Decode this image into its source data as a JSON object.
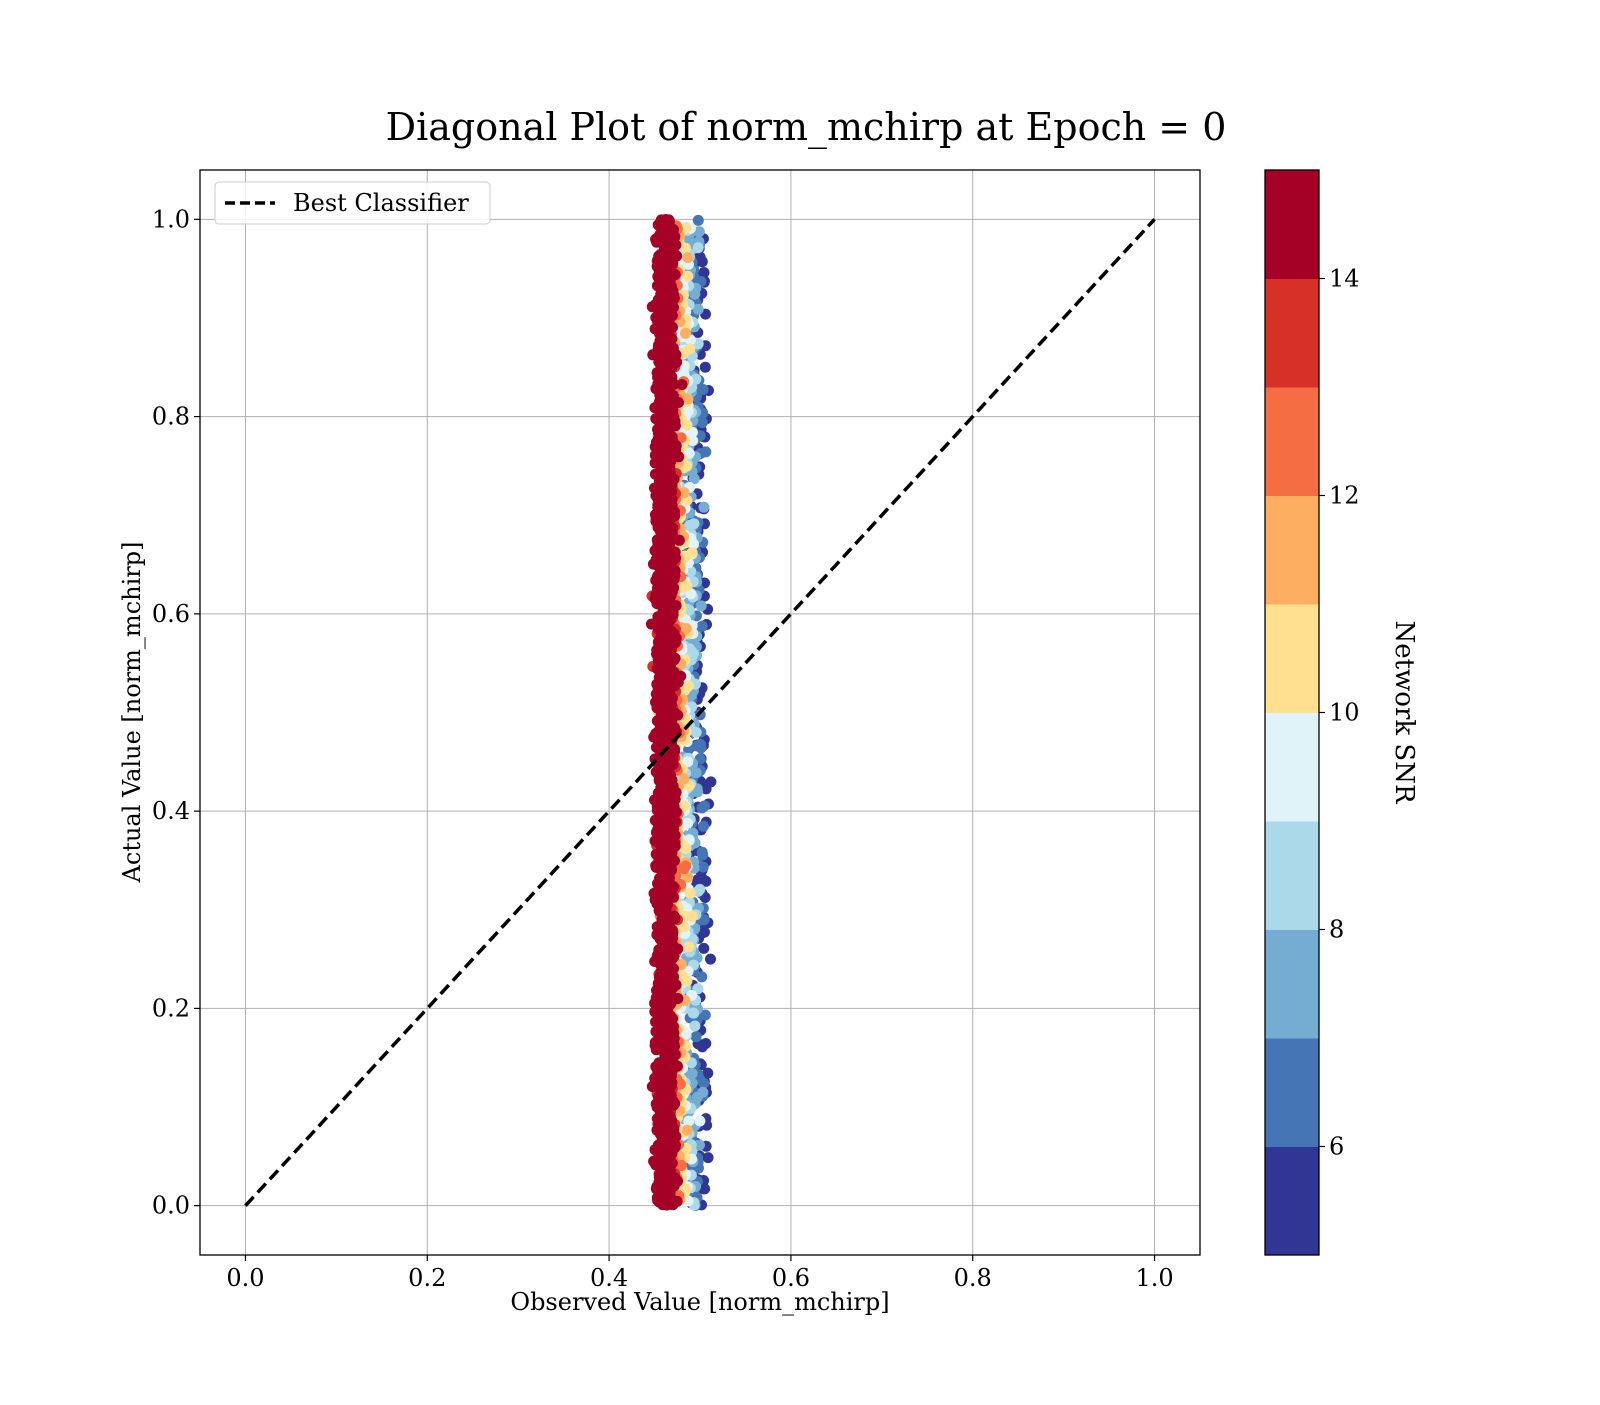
{
  "chart_data": {
    "type": "scatter",
    "title": "Diagonal Plot of norm_mchirp at Epoch = 0",
    "xlabel": "Observed Value [norm_mchirp]",
    "ylabel": "Actual Value [norm_mchirp]",
    "xlim": [
      -0.05,
      1.05
    ],
    "ylim": [
      -0.05,
      1.05
    ],
    "xticks": [
      "0.0",
      "0.2",
      "0.4",
      "0.6",
      "0.8",
      "1.0"
    ],
    "yticks": [
      "0.0",
      "0.2",
      "0.4",
      "0.6",
      "0.8",
      "1.0"
    ],
    "grid": true,
    "legend": {
      "placement": "upper-left",
      "entries": [
        {
          "label": "Best Classifier",
          "style": "dashed",
          "color": "#000000"
        }
      ]
    },
    "reference_line": {
      "x": [
        0.0,
        1.0
      ],
      "y": [
        0.0,
        1.0
      ],
      "style": "dashed",
      "color": "#000000"
    },
    "scatter_band": {
      "x_range": [
        0.43,
        0.515
      ],
      "y_range": [
        0.0,
        1.0
      ],
      "note_high_snr_center": 0.462,
      "note_low_snr_center": 0.5
    },
    "colorbar": {
      "label": "Network SNR",
      "vmin": 5,
      "vmax": 15,
      "ticks": [
        "6",
        "8",
        "10",
        "12",
        "14"
      ],
      "tick_values": [
        6,
        8,
        10,
        12,
        14
      ],
      "colors": [
        "#313695",
        "#4575b4",
        "#74add1",
        "#abd9e9",
        "#e0f3f8",
        "#fee090",
        "#fdae61",
        "#f46d43",
        "#d73027",
        "#a50026"
      ],
      "bins": [
        5,
        6,
        7,
        8,
        9,
        10,
        11,
        12,
        13,
        14,
        15
      ]
    }
  }
}
